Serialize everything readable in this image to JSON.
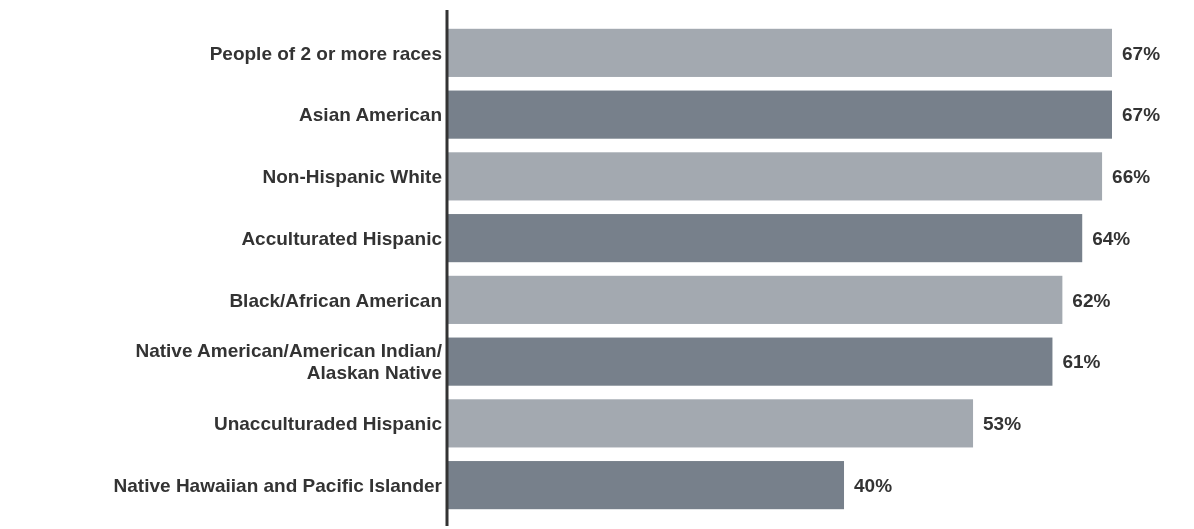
{
  "chart_data": {
    "type": "bar",
    "orientation": "horizontal",
    "categories": [
      "People of 2 or more races",
      "Asian American",
      "Non-Hispanic White",
      "Acculturated Hispanic",
      "Black/African American",
      "Native American/American Indian/\nAlaskan Native",
      "Unacculturaded Hispanic",
      "Native Hawaiian and Pacific Islander"
    ],
    "values": [
      67,
      67,
      66,
      64,
      62,
      61,
      53,
      40
    ],
    "value_labels": [
      "67%",
      "67%",
      "66%",
      "64%",
      "62%",
      "61%",
      "53%",
      "40%"
    ],
    "colors": [
      "#a3a9b0",
      "#77808b",
      "#a3a9b0",
      "#77808b",
      "#a3a9b0",
      "#77808b",
      "#a3a9b0",
      "#77808b"
    ],
    "tick_labels": "y"
  }
}
